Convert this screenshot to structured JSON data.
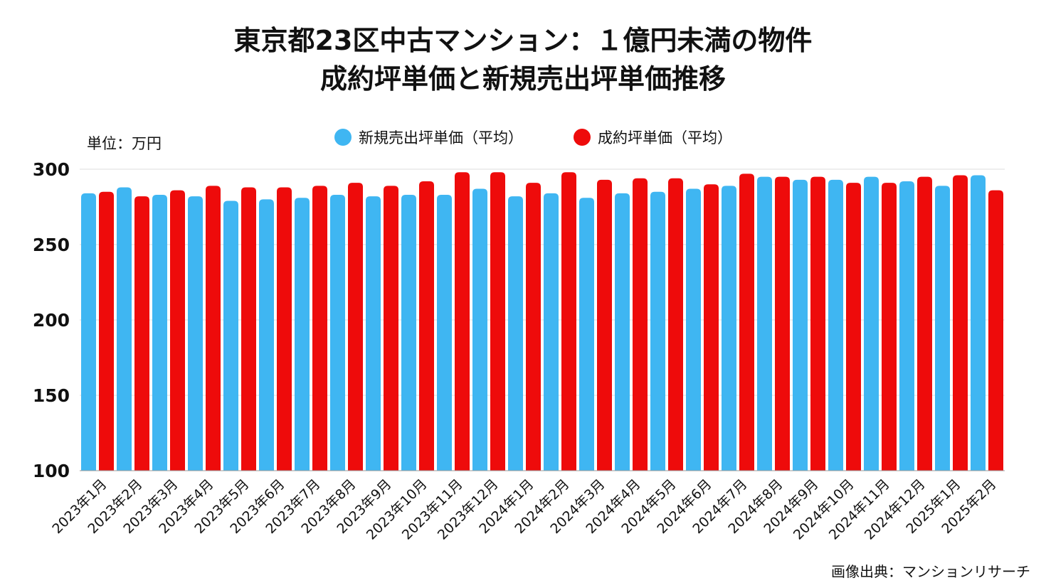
{
  "header": {
    "title_line1": "東京都23区中古マンション：１億円未満の物件",
    "title_line2": "成約坪単価と新規売出坪単価推移"
  },
  "unit_label": "単位：万円",
  "source_label": "画像出典：マンションリサーチ",
  "colors": {
    "new_listing": "#3fb6f2",
    "contract": "#ee0b0b",
    "grid": "#dddddd",
    "axis": "#999999"
  },
  "chart_data": {
    "type": "bar",
    "title": "東京都23区中古マンション：１億円未満の物件 成約坪単価と新規売出坪単価推移",
    "xlabel": "",
    "ylabel": "単位：万円",
    "ylim": [
      100,
      300
    ],
    "yticks": [
      100,
      150,
      200,
      250,
      300
    ],
    "legend_position": "top-center",
    "categories": [
      "2023年1月",
      "2023年2月",
      "2023年3月",
      "2023年4月",
      "2023年5月",
      "2023年6月",
      "2023年7月",
      "2023年8月",
      "2023年9月",
      "2023年10月",
      "2023年11月",
      "2023年12月",
      "2024年1月",
      "2024年2月",
      "2024年3月",
      "2024年4月",
      "2024年5月",
      "2024年6月",
      "2024年7月",
      "2024年8月",
      "2024年9月",
      "2024年10月",
      "2024年11月",
      "2024年12月",
      "2025年1月",
      "2025年2月"
    ],
    "series": [
      {
        "name": "新規売出坪単価（平均）",
        "color": "#3fb6f2",
        "values": [
          284,
          288,
          283,
          282,
          279,
          280,
          281,
          283,
          282,
          283,
          283,
          287,
          282,
          284,
          281,
          284,
          285,
          287,
          289,
          295,
          293,
          293,
          295,
          292,
          289,
          296
        ]
      },
      {
        "name": "成約坪単価（平均）",
        "color": "#ee0b0b",
        "values": [
          285,
          282,
          286,
          289,
          288,
          288,
          289,
          291,
          289,
          292,
          298,
          298,
          291,
          298,
          293,
          294,
          294,
          290,
          297,
          295,
          295,
          291,
          291,
          295,
          296,
          286
        ]
      }
    ]
  }
}
